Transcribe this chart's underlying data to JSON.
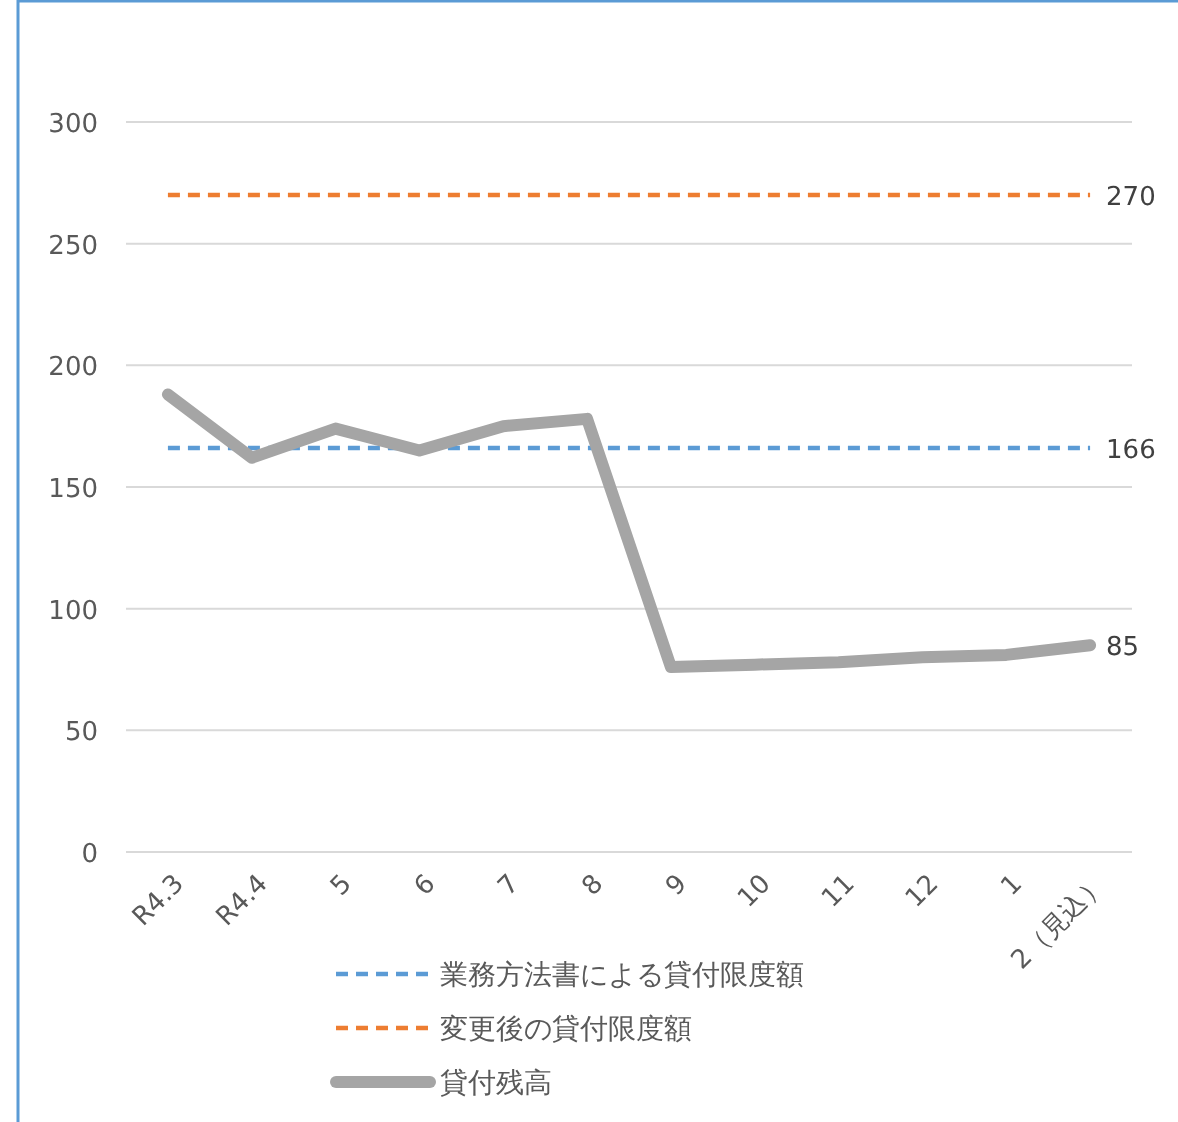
{
  "chart_data": {
    "type": "line",
    "categories": [
      "R4.3",
      "R4.4",
      "5",
      "6",
      "7",
      "8",
      "9",
      "10",
      "11",
      "12",
      "1",
      "2（見込）"
    ],
    "series": [
      {
        "name": "業務方法書による貸付限度額",
        "color": "#5b9bd5",
        "line_style": "dashed",
        "values": [
          166,
          166,
          166,
          166,
          166,
          166,
          166,
          166,
          166,
          166,
          166,
          166
        ],
        "value_labels": [
          null,
          null,
          null,
          null,
          null,
          null,
          null,
          null,
          null,
          null,
          null,
          "166"
        ]
      },
      {
        "name": "変更後の貸付限度額",
        "color": "#ed7d31",
        "line_style": "dashed",
        "values": [
          270,
          270,
          270,
          270,
          270,
          270,
          270,
          270,
          270,
          270,
          270,
          270
        ],
        "value_labels": [
          null,
          null,
          null,
          null,
          null,
          null,
          null,
          null,
          null,
          null,
          null,
          "270"
        ]
      },
      {
        "name": "貸付残高",
        "color": "#a5a5a5",
        "line_style": "solid",
        "values": [
          188,
          162,
          174,
          165,
          175,
          178,
          76,
          77,
          78,
          80,
          81,
          85
        ],
        "value_labels": [
          null,
          null,
          null,
          null,
          null,
          null,
          null,
          null,
          null,
          null,
          null,
          "85"
        ]
      }
    ],
    "ylim": [
      0,
      300
    ],
    "yticks": [
      0,
      50,
      100,
      150,
      200,
      250,
      300
    ],
    "grid": "y",
    "legend": "bottom",
    "marker": "none"
  }
}
